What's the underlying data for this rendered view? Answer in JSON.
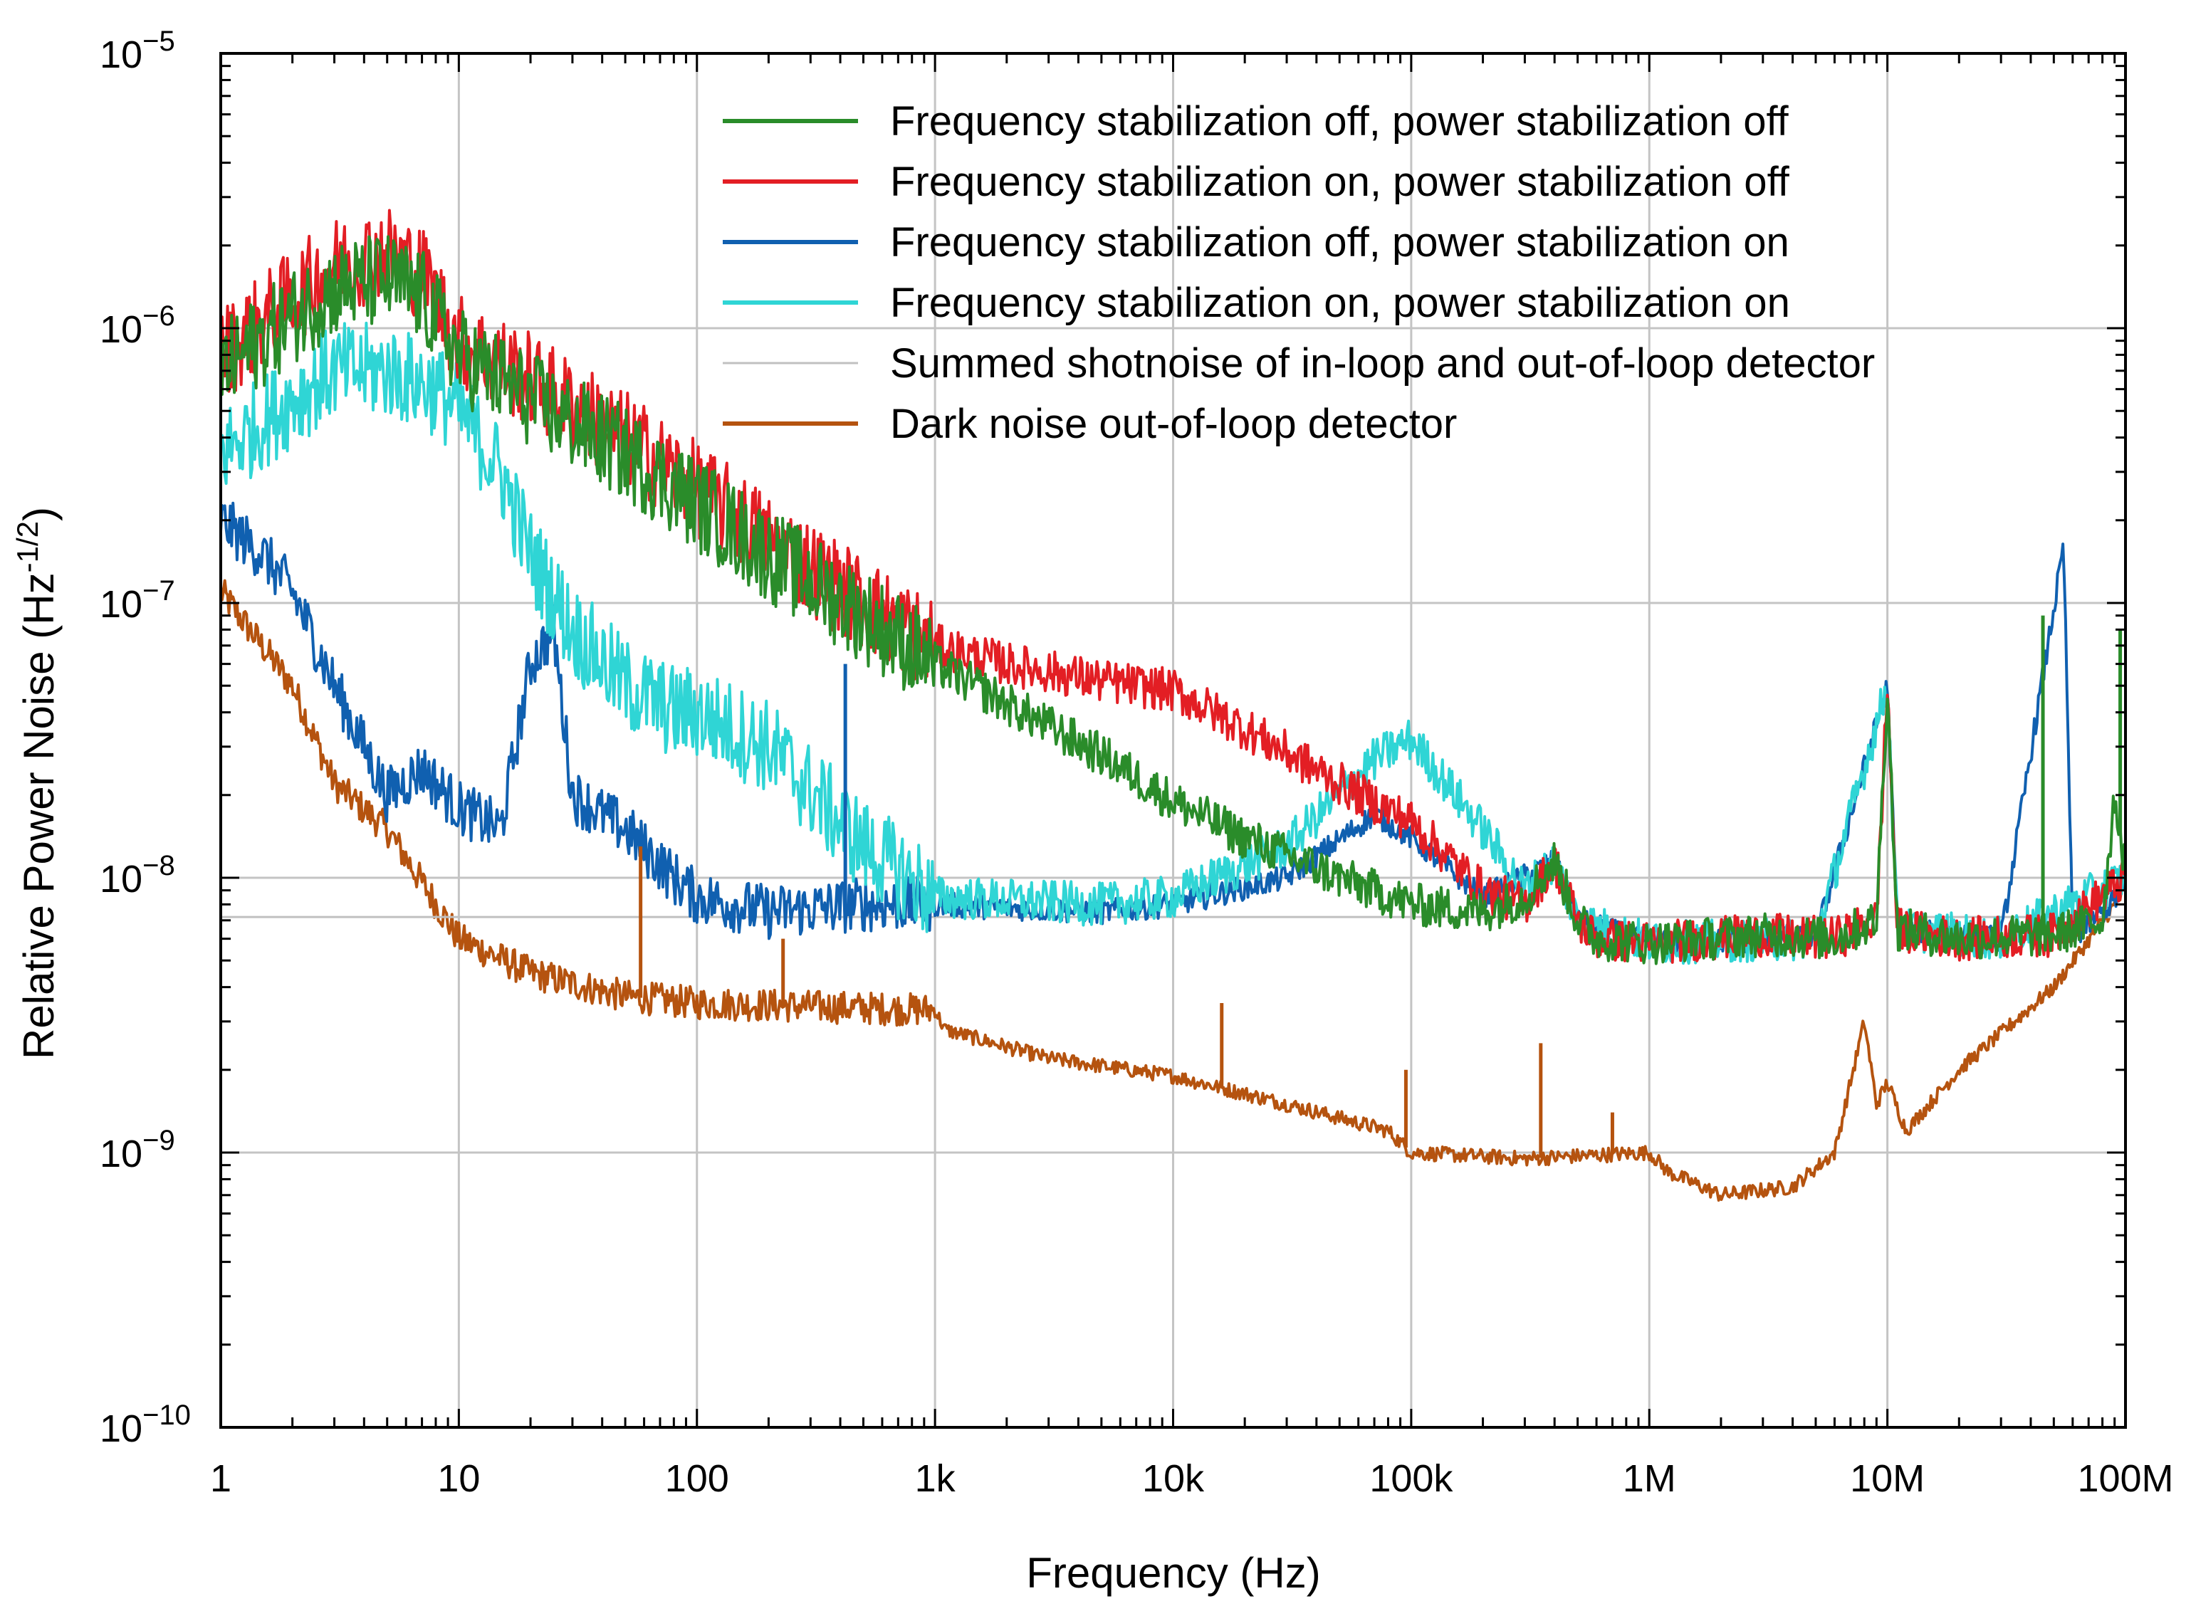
{
  "chart_data": {
    "type": "line",
    "xscale": "log",
    "yscale": "log",
    "xlabel": "Frequency (Hz)",
    "ylabel": "Relative Power Noise (Hz",
    "ylabel_sup": "-1/2",
    "ylabel_end": ")",
    "xlim": [
      1,
      100000000
    ],
    "ylim": [
      1e-10,
      1e-05
    ],
    "grid": true,
    "legend_position": "top-right",
    "x_ticks": [
      {
        "value": 1,
        "label": "1"
      },
      {
        "value": 10,
        "label": "10"
      },
      {
        "value": 100,
        "label": "100"
      },
      {
        "value": 1000,
        "label": "1k"
      },
      {
        "value": 10000,
        "label": "10k"
      },
      {
        "value": 100000,
        "label": "100k"
      },
      {
        "value": 1000000,
        "label": "1M"
      },
      {
        "value": 10000000,
        "label": "10M"
      },
      {
        "value": 100000000,
        "label": "100M"
      }
    ],
    "y_ticks": [
      {
        "value": 1e-05,
        "base": "10",
        "exp": "−5"
      },
      {
        "value": 1e-06,
        "base": "10",
        "exp": "−6"
      },
      {
        "value": 1e-07,
        "base": "10",
        "exp": "−7"
      },
      {
        "value": 1e-08,
        "base": "10",
        "exp": "−8"
      },
      {
        "value": 1e-09,
        "base": "10",
        "exp": "−9"
      },
      {
        "value": 1e-10,
        "base": "10",
        "exp": "−10"
      }
    ],
    "series": [
      {
        "name": "Frequency stabilization off, power stabilization off",
        "color": "#2a8c2a",
        "noise": 0.35,
        "points": [
          [
            1,
            7e-07
          ],
          [
            2,
            1.1e-06
          ],
          [
            3,
            1.4e-06
          ],
          [
            5,
            1.5e-06
          ],
          [
            7,
            1.3e-06
          ],
          [
            10,
            8e-07
          ],
          [
            20,
            5.5e-07
          ],
          [
            50,
            3.5e-07
          ],
          [
            100,
            2.3e-07
          ],
          [
            200,
            1.5e-07
          ],
          [
            500,
            9e-08
          ],
          [
            1000,
            6e-08
          ],
          [
            2000,
            4.3e-08
          ],
          [
            5000,
            2.8e-08
          ],
          [
            10000,
            1.9e-08
          ],
          [
            20000,
            1.4e-08
          ],
          [
            50000,
            1e-08
          ],
          [
            100000,
            8e-09
          ],
          [
            200000,
            7.5e-09
          ],
          [
            300000,
            8.5e-09
          ],
          [
            400000,
            1.15e-08
          ],
          [
            500000,
            7e-09
          ],
          [
            600000,
            6e-09
          ],
          [
            1000000,
            5.8e-09
          ],
          [
            3000000,
            6.2e-09
          ],
          [
            6000000,
            6e-09
          ],
          [
            9000000,
            7e-09
          ],
          [
            10000000,
            5e-08
          ],
          [
            11000000,
            6.5e-09
          ],
          [
            20000000,
            6e-09
          ],
          [
            50000000,
            6.2e-09
          ],
          [
            80000000,
            7e-09
          ],
          [
            90000000,
            2e-08
          ],
          [
            100000000,
            1.1e-08
          ]
        ]
      },
      {
        "name": "Frequency stabilization on, power stabilization off",
        "color": "#e31e24",
        "noise": 0.35,
        "points": [
          [
            1,
            8e-07
          ],
          [
            2,
            1.3e-06
          ],
          [
            3,
            1.7e-06
          ],
          [
            5,
            1.9e-06
          ],
          [
            7,
            1.6e-06
          ],
          [
            10,
            9e-07
          ],
          [
            20,
            6.5e-07
          ],
          [
            50,
            4e-07
          ],
          [
            100,
            2.6e-07
          ],
          [
            200,
            1.7e-07
          ],
          [
            500,
            1e-07
          ],
          [
            1000,
            7e-08
          ],
          [
            2000,
            6e-08
          ],
          [
            5000,
            5.2e-08
          ],
          [
            10000,
            4.8e-08
          ],
          [
            20000,
            3.5e-08
          ],
          [
            50000,
            2.2e-08
          ],
          [
            100000,
            1.6e-08
          ],
          [
            200000,
            9e-09
          ],
          [
            300000,
            8e-09
          ],
          [
            400000,
            1.15e-08
          ],
          [
            500000,
            7e-09
          ],
          [
            600000,
            6e-09
          ],
          [
            1000000,
            5.8e-09
          ],
          [
            3000000,
            6.2e-09
          ],
          [
            6000000,
            6e-09
          ],
          [
            9000000,
            7e-09
          ],
          [
            10000000,
            5e-08
          ],
          [
            11000000,
            6.5e-09
          ],
          [
            20000000,
            6e-09
          ],
          [
            50000000,
            6.2e-09
          ],
          [
            100000000,
            1e-08
          ]
        ]
      },
      {
        "name": "Frequency stabilization off, power stabilization on",
        "color": "#1060b0",
        "noise": 0.2,
        "points": [
          [
            1,
            2e-07
          ],
          [
            1.5,
            1.5e-07
          ],
          [
            2,
            1.1e-07
          ],
          [
            3,
            5e-08
          ],
          [
            5,
            2e-08
          ],
          [
            7,
            2.5e-08
          ],
          [
            10,
            1.8e-08
          ],
          [
            15,
            1.5e-08
          ],
          [
            20,
            6e-08
          ],
          [
            25,
            8e-08
          ],
          [
            30,
            2e-08
          ],
          [
            50,
            1.5e-08
          ],
          [
            80,
            1e-08
          ],
          [
            100,
            8.5e-09
          ],
          [
            200,
            7.5e-09
          ],
          [
            500,
            8e-09
          ],
          [
            1000,
            8e-09
          ],
          [
            5000,
            7.5e-09
          ],
          [
            10000,
            8e-09
          ],
          [
            30000,
            1e-08
          ],
          [
            70000,
            1.7e-08
          ],
          [
            100000,
            1.4e-08
          ],
          [
            200000,
            8.5e-09
          ],
          [
            400000,
            1.15e-08
          ],
          [
            500000,
            7e-09
          ],
          [
            1000000,
            5.8e-09
          ],
          [
            5000000,
            6e-09
          ],
          [
            10000000,
            5e-08
          ],
          [
            11000000,
            6.5e-09
          ],
          [
            30000000,
            6e-09
          ],
          [
            55000000,
            1.6e-07
          ],
          [
            60000000,
            6e-09
          ],
          [
            100000000,
            9e-09
          ]
        ]
      },
      {
        "name": "Frequency stabilization on, power stabilization on",
        "color": "#2fd5d5",
        "noise": 0.35,
        "points": [
          [
            1,
            3.5e-07
          ],
          [
            2,
            5.5e-07
          ],
          [
            3,
            7e-07
          ],
          [
            5,
            7e-07
          ],
          [
            8,
            6e-07
          ],
          [
            10,
            5e-07
          ],
          [
            15,
            3e-07
          ],
          [
            20,
            1.5e-07
          ],
          [
            30,
            8e-08
          ],
          [
            50,
            5e-08
          ],
          [
            80,
            4e-08
          ],
          [
            100,
            4e-08
          ],
          [
            200,
            3e-08
          ],
          [
            500,
            1.3e-08
          ],
          [
            1000,
            8.5e-09
          ],
          [
            5000,
            8e-09
          ],
          [
            10000,
            8.5e-09
          ],
          [
            30000,
            1.3e-08
          ],
          [
            70000,
            2.7e-08
          ],
          [
            100000,
            3.2e-08
          ],
          [
            200000,
            1.5e-08
          ],
          [
            300000,
            9e-09
          ],
          [
            400000,
            1.15e-08
          ],
          [
            500000,
            7e-09
          ],
          [
            1000000,
            5.8e-09
          ],
          [
            5000000,
            6e-09
          ],
          [
            10000000,
            5e-08
          ],
          [
            11000000,
            6.5e-09
          ],
          [
            30000000,
            6e-09
          ],
          [
            100000000,
            1e-08
          ]
        ]
      },
      {
        "name": "Summed shotnoise of in-loop and out-of-loop detector",
        "color": "#c0c0c0",
        "noise": 0,
        "points": [
          [
            1,
            7.2e-09
          ],
          [
            100000000,
            7.2e-09
          ]
        ]
      },
      {
        "name": "Dark noise out-of-loop detector",
        "color": "#b5530f",
        "noise": 0.12,
        "points": [
          [
            1,
            1.1e-07
          ],
          [
            2,
            5e-08
          ],
          [
            3,
            2.2e-08
          ],
          [
            5,
            1.5e-08
          ],
          [
            10,
            6e-09
          ],
          [
            20,
            4.5e-09
          ],
          [
            50,
            3.7e-09
          ],
          [
            100,
            3.5e-09
          ],
          [
            300,
            3.4e-09
          ],
          [
            1000,
            3.3e-09
          ],
          [
            1100,
            2.8e-09
          ],
          [
            3000,
            2.2e-09
          ],
          [
            10000,
            1.9e-09
          ],
          [
            30000,
            1.5e-09
          ],
          [
            80000,
            1.2e-09
          ],
          [
            100000,
            1e-09
          ],
          [
            300000,
            9.5e-10
          ],
          [
            1000000,
            1e-09
          ],
          [
            1200000,
            8.5e-10
          ],
          [
            2000000,
            7e-10
          ],
          [
            4000000,
            7.5e-10
          ],
          [
            6000000,
            1e-09
          ],
          [
            8000000,
            3e-09
          ],
          [
            9000000,
            1.5e-09
          ],
          [
            10000000,
            1.8e-09
          ],
          [
            12000000,
            1.2e-09
          ],
          [
            20000000,
            2e-09
          ],
          [
            50000000,
            4e-09
          ],
          [
            100000000,
            9e-09
          ]
        ]
      }
    ],
    "spikes": [
      {
        "series": 5,
        "x": 58,
        "y": 1.3e-08
      },
      {
        "series": 5,
        "x": 230,
        "y": 6e-09
      },
      {
        "series": 5,
        "x": 16000,
        "y": 3.5e-09
      },
      {
        "series": 5,
        "x": 95000,
        "y": 2e-09
      },
      {
        "series": 5,
        "x": 350000,
        "y": 2.5e-09
      },
      {
        "series": 5,
        "x": 700000,
        "y": 1.4e-09
      },
      {
        "series": 2,
        "x": 420,
        "y": 6e-08
      },
      {
        "series": 0,
        "x": 45000000,
        "y": 9e-08
      },
      {
        "series": 0,
        "x": 95000000,
        "y": 8e-08
      }
    ]
  }
}
